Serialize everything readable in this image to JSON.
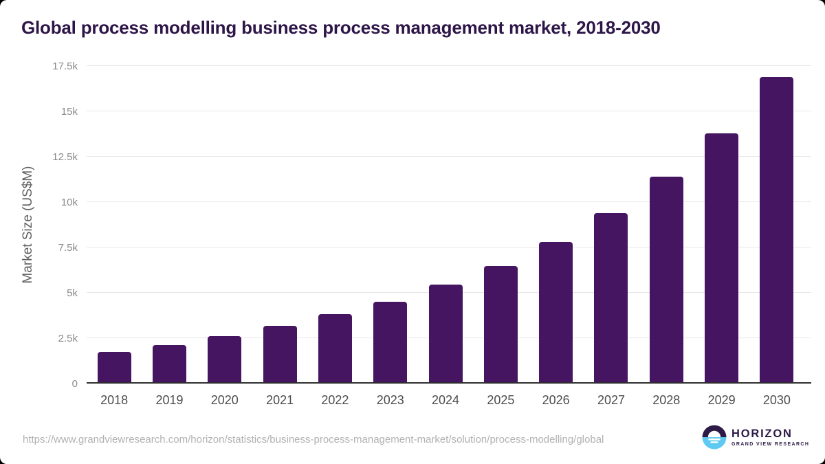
{
  "page_title": "Global process modelling business process management market, 2018-2030",
  "footer": {
    "source_url": "https://www.grandviewresearch.com/horizon/statistics/business-process-management-market/solution/process-modelling/global",
    "logo": {
      "brand": "HORIZON",
      "subtitle": "GRAND VIEW RESEARCH",
      "icon": "horizon-sunset-icon"
    }
  },
  "colors": {
    "bar": "#461561",
    "title_text": "#2d1547",
    "gridline": "#e7e7e7",
    "axis_line": "#2f2f2f",
    "ytick_text": "#8a8a8a",
    "xtick_text": "#4d4d4d",
    "ylabel_text": "#606060",
    "url_text": "#b1b1b1",
    "logo_purple": "#2e1a47",
    "logo_blue": "#5ec9f2"
  },
  "chart_data": {
    "type": "bar",
    "title": "Global process modelling business process management market, 2018-2030",
    "xlabel": "",
    "ylabel": "Market Size (US$M)",
    "ylim": [
      0,
      17500
    ],
    "grid": true,
    "legend": false,
    "categories": [
      "2018",
      "2019",
      "2020",
      "2021",
      "2022",
      "2023",
      "2024",
      "2025",
      "2026",
      "2027",
      "2028",
      "2029",
      "2030"
    ],
    "values": [
      1750,
      2130,
      2630,
      3200,
      3830,
      4520,
      5440,
      6460,
      7800,
      9400,
      11400,
      13800,
      16900
    ],
    "yticks": [
      {
        "value": 0,
        "label": "0"
      },
      {
        "value": 2500,
        "label": "2.5k"
      },
      {
        "value": 5000,
        "label": "5k"
      },
      {
        "value": 7500,
        "label": "7.5k"
      },
      {
        "value": 10000,
        "label": "10k"
      },
      {
        "value": 12500,
        "label": "12.5k"
      },
      {
        "value": 15000,
        "label": "15k"
      },
      {
        "value": 17500,
        "label": "17.5k"
      }
    ]
  }
}
